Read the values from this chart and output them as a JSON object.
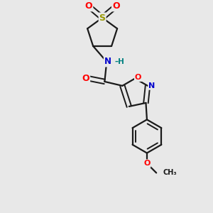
{
  "bg_color": "#e8e8e8",
  "bond_color": "#1a1a1a",
  "atom_colors": {
    "S": "#999900",
    "O": "#ff0000",
    "N": "#0000cc",
    "NH": "#008080",
    "C": "#1a1a1a"
  },
  "fig_size": [
    3.0,
    3.0
  ],
  "dpi": 100
}
